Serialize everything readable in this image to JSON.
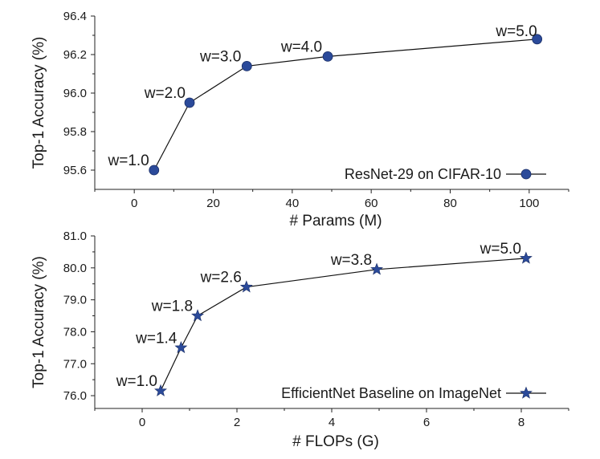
{
  "chart_data": [
    {
      "type": "line",
      "xlabel": "# Params (M)",
      "ylabel": "Top-1 Accuracy (%)",
      "xlim": [
        -10,
        110
      ],
      "ylim": [
        95.5,
        96.4
      ],
      "xticks": [
        0,
        20,
        40,
        60,
        80,
        100
      ],
      "xtick_labels": [
        "0",
        "20",
        "40",
        "60",
        "80",
        "100"
      ],
      "yticks": [
        95.6,
        95.8,
        96.0,
        96.2,
        96.4
      ],
      "ytick_labels": [
        "95.6",
        "95.8",
        "96.0",
        "96.2",
        "96.4"
      ],
      "grid": false,
      "legend_position": "bottom-right",
      "series": [
        {
          "name": "ResNet-29 on CIFAR-10",
          "marker": "circle",
          "color": "#2b4a9a",
          "x": [
            5,
            14,
            28.5,
            49,
            102
          ],
          "y": [
            95.6,
            95.95,
            96.14,
            96.19,
            96.28
          ],
          "labels": [
            "w=1.0",
            "w=2.0",
            "w=3.0",
            "w=4.0",
            "w=5.0"
          ]
        }
      ]
    },
    {
      "type": "line",
      "xlabel": "# FLOPs (G)",
      "ylabel": "Top-1 Accuracy (%)",
      "xlim": [
        -1,
        9
      ],
      "ylim": [
        75.6,
        81.0
      ],
      "xticks": [
        0,
        2,
        4,
        6,
        8
      ],
      "xtick_labels": [
        "0",
        "2",
        "4",
        "6",
        "8"
      ],
      "yticks": [
        76.0,
        77.0,
        78.0,
        79.0,
        80.0,
        81.0
      ],
      "ytick_labels": [
        "76.0",
        "77.0",
        "78.0",
        "79.0",
        "80.0",
        "81.0"
      ],
      "grid": false,
      "legend_position": "bottom-right",
      "series": [
        {
          "name": "EfficientNet Baseline on ImageNet",
          "marker": "star",
          "color": "#2b4a9a",
          "x": [
            0.39,
            0.82,
            1.17,
            2.2,
            4.95,
            8.1
          ],
          "y": [
            76.15,
            77.5,
            78.5,
            79.4,
            79.95,
            80.3
          ],
          "labels": [
            "w=1.0",
            "w=1.4",
            "w=1.8",
            "w=2.6",
            "w=3.8",
            "w=5.0"
          ]
        }
      ]
    }
  ]
}
